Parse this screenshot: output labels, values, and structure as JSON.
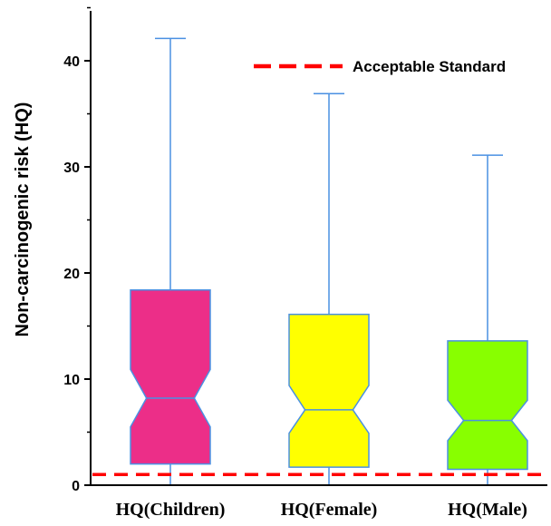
{
  "chart_data": {
    "type": "box",
    "notched": true,
    "title": "",
    "xlabel": "",
    "ylabel": "Non-carcinogenic risk (HQ)",
    "ylim": [
      0,
      45
    ],
    "yticks": [
      0,
      10,
      20,
      30,
      40
    ],
    "grid": false,
    "categories": [
      "HQ(Children)",
      "HQ(Female)",
      "HQ(Male)"
    ],
    "boxes": [
      {
        "name": "HQ(Children)",
        "min": 0,
        "q1": 2.0,
        "notch_low": 5.5,
        "median": 8.2,
        "notch_high": 10.9,
        "q3": 18.4,
        "max": 42.1,
        "color": "#ec2e88"
      },
      {
        "name": "HQ(Female)",
        "min": 0,
        "q1": 1.7,
        "notch_low": 4.9,
        "median": 7.1,
        "notch_high": 9.4,
        "q3": 16.1,
        "max": 36.9,
        "color": "#ffff00"
      },
      {
        "name": "HQ(Male)",
        "min": 0,
        "q1": 1.5,
        "notch_low": 4.2,
        "median": 6.1,
        "notch_high": 8.0,
        "q3": 13.6,
        "max": 31.1,
        "color": "#88ff00"
      }
    ],
    "reference_line": {
      "label": "Acceptable Standard",
      "value": 1,
      "color": "#ff0000",
      "style": "dashed"
    },
    "legend": {
      "position": "top-right",
      "entries": [
        "Acceptable Standard"
      ]
    },
    "colors": {
      "box_edge": "#4a90e2",
      "axis": "#000000"
    }
  }
}
